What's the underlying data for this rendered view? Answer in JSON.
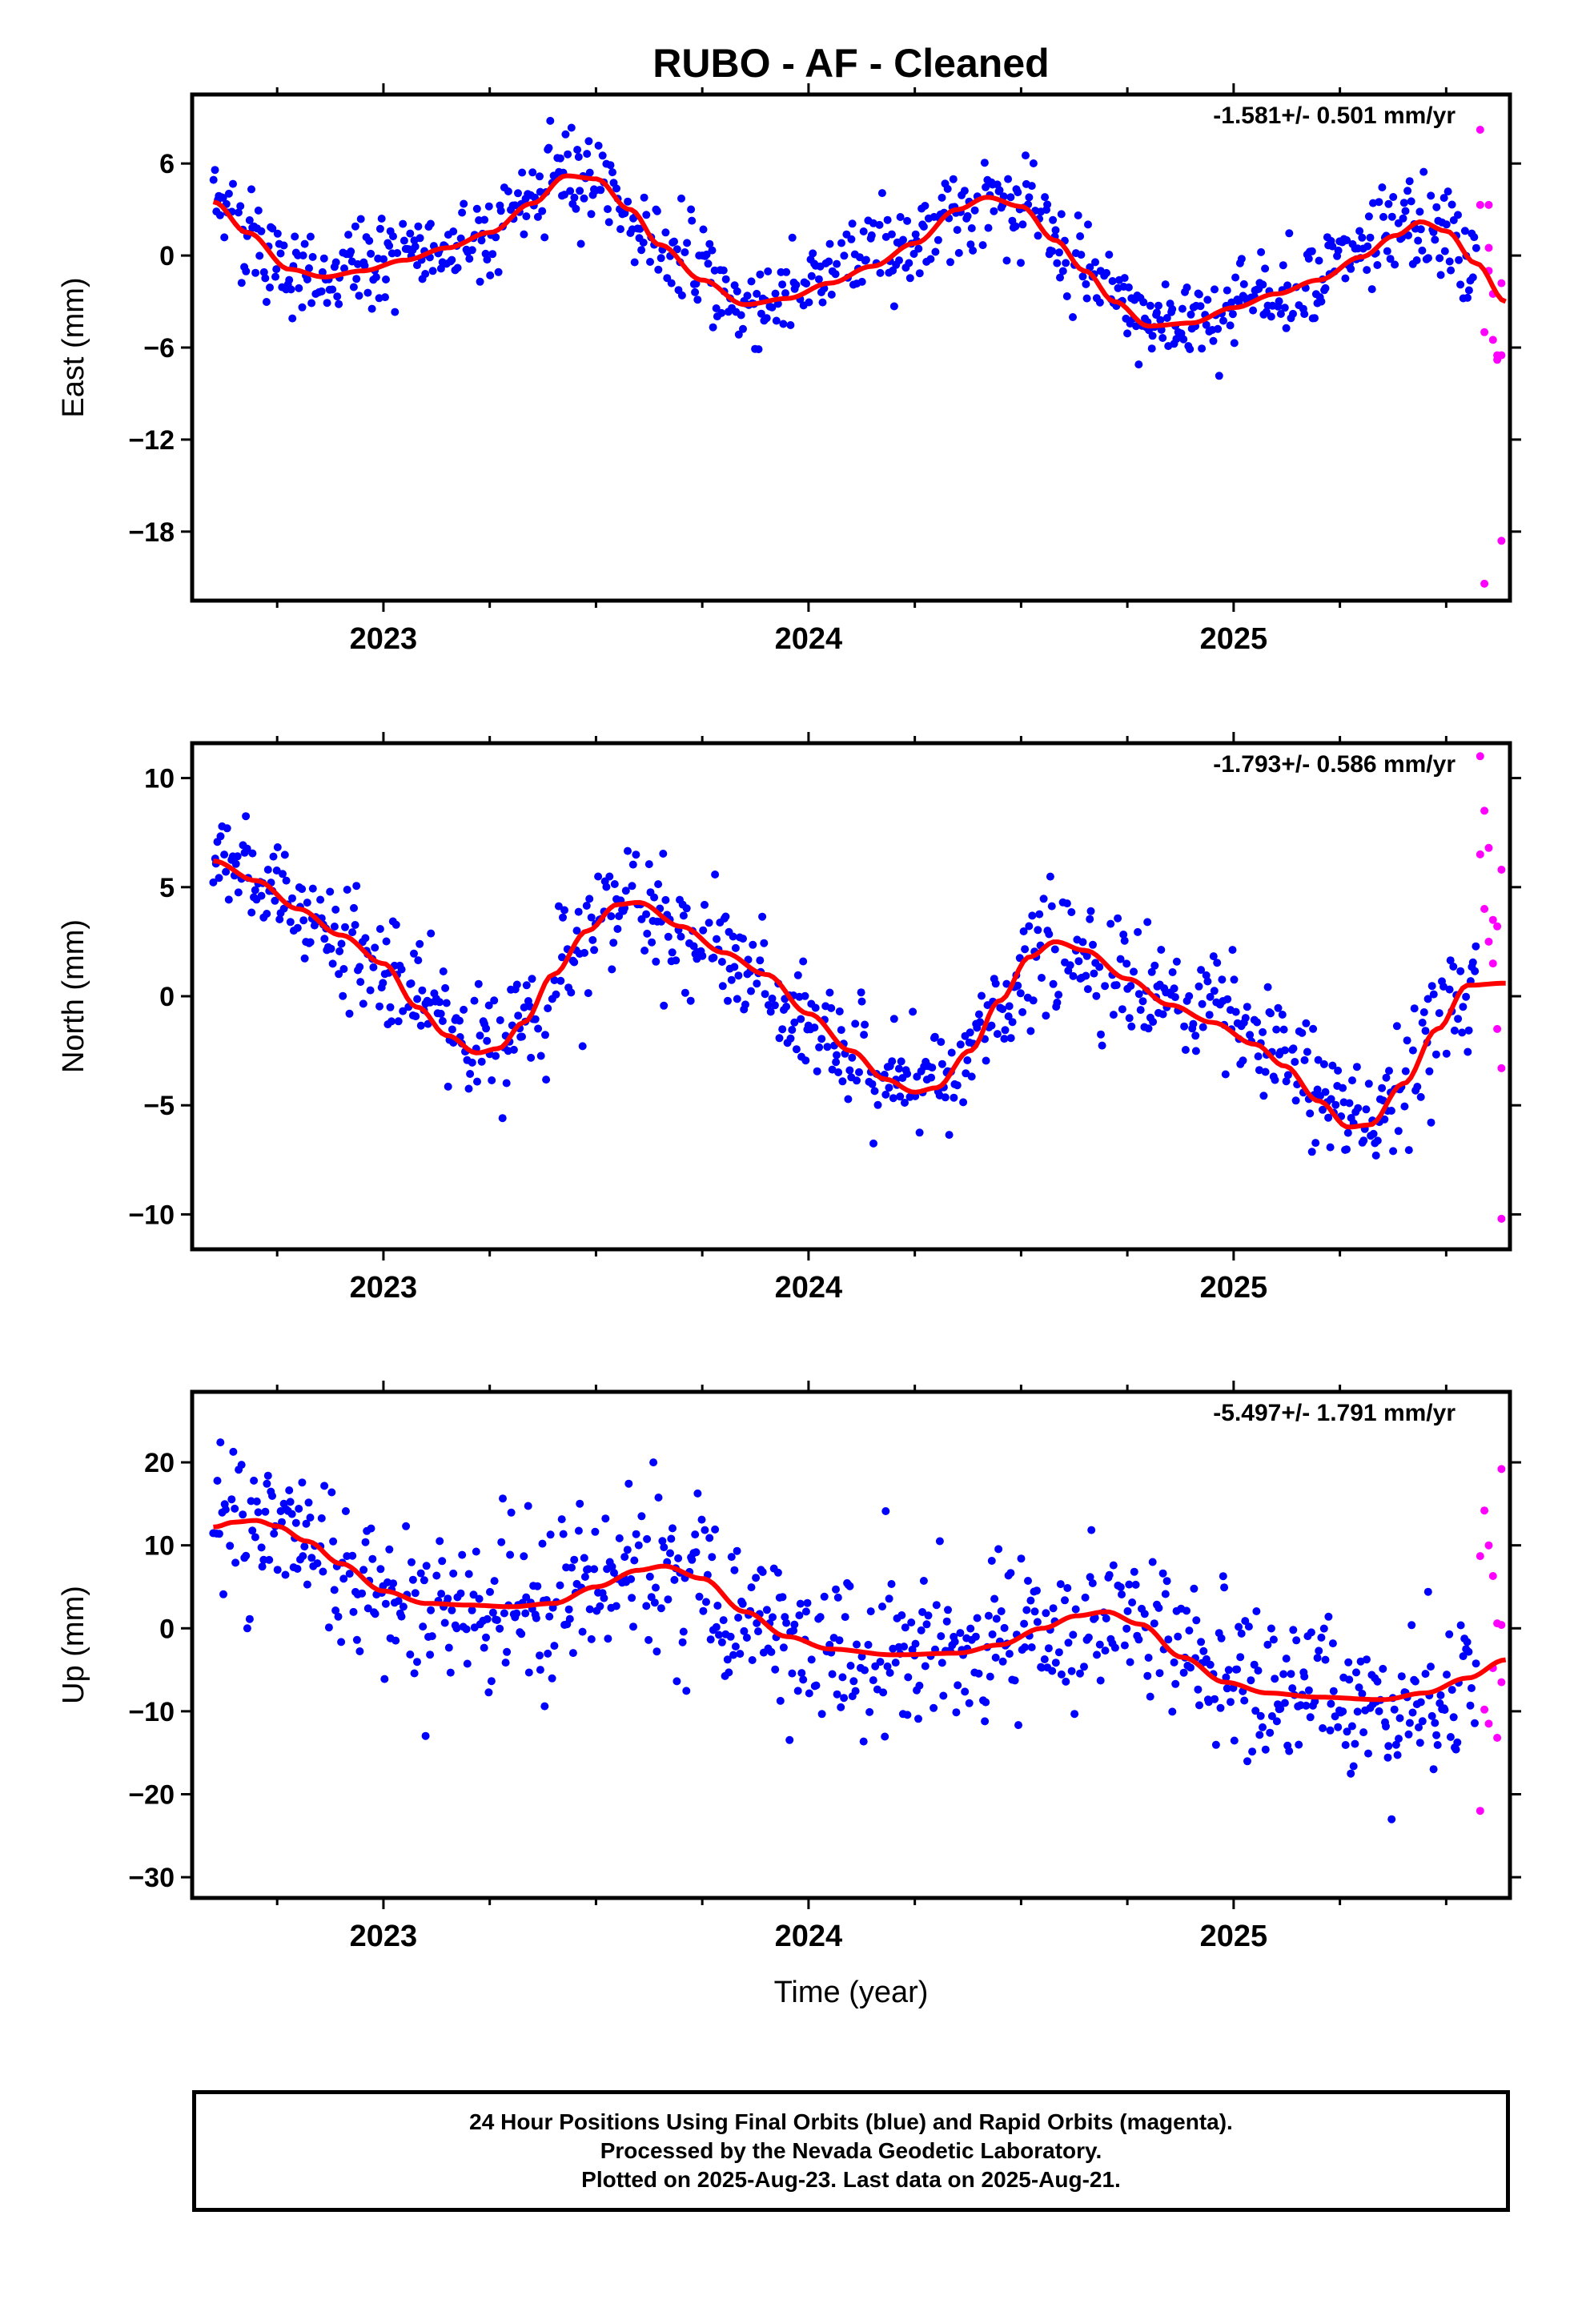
{
  "title": "RUBO  - AF - Cleaned",
  "colors": {
    "final": "#0000ff",
    "rapid": "#ff00ff",
    "fit": "#ff0000",
    "axis": "#000000"
  },
  "chart_data": [
    {
      "type": "scatter",
      "ylabel": "East (mm)",
      "xlabel": "",
      "xlim": [
        2022.55,
        2025.65
      ],
      "ylim": [
        -22.5,
        10.5
      ],
      "yticks": [
        6,
        0,
        -6,
        -12,
        -18
      ],
      "xticks": [
        2023,
        2024,
        2025
      ],
      "rate_label": "-1.581+/- 0.501 mm/yr",
      "grid": false,
      "series": [
        {
          "role": "final",
          "x_range": [
            2022.6,
            2025.57
          ],
          "count": 900,
          "trend_knots": [
            [
              2022.6,
              3.5
            ],
            [
              2022.78,
              -1.0
            ],
            [
              2022.86,
              -1.4
            ],
            [
              2023.05,
              -0.2
            ],
            [
              2023.2,
              1.2
            ],
            [
              2023.35,
              3.8
            ],
            [
              2023.43,
              5.3
            ],
            [
              2023.5,
              4.9
            ],
            [
              2023.65,
              0.8
            ],
            [
              2023.85,
              -3.1
            ],
            [
              2024.0,
              -1.8
            ],
            [
              2024.2,
              0.5
            ],
            [
              2024.35,
              3.0
            ],
            [
              2024.42,
              3.8
            ],
            [
              2024.5,
              3.0
            ],
            [
              2024.65,
              -1.0
            ],
            [
              2024.8,
              -4.6
            ],
            [
              2024.95,
              -3.6
            ],
            [
              2025.1,
              -2.3
            ],
            [
              2025.25,
              -0.6
            ],
            [
              2025.35,
              0.9
            ],
            [
              2025.43,
              2.2
            ],
            [
              2025.5,
              1.6
            ],
            [
              2025.57,
              -0.8
            ]
          ],
          "scatter_sd": 1.5
        },
        {
          "role": "rapid",
          "x": [
            2025.58,
            2025.58,
            2025.59,
            2025.59,
            2025.6,
            2025.6,
            2025.6,
            2025.61,
            2025.61,
            2025.62,
            2025.62,
            2025.63,
            2025.63,
            2025.63
          ],
          "y": [
            8.2,
            3.3,
            -21.4,
            -5.0,
            3.3,
            0.5,
            -1.0,
            -2.5,
            -5.5,
            -6.5,
            -6.8,
            -1.8,
            -6.5,
            -18.6
          ]
        }
      ],
      "fit": {
        "x": [
          2022.6,
          2022.68,
          2022.78,
          2022.86,
          2022.95,
          2023.05,
          2023.15,
          2023.25,
          2023.35,
          2023.43,
          2023.5,
          2023.58,
          2023.65,
          2023.75,
          2023.85,
          2023.95,
          2024.05,
          2024.15,
          2024.25,
          2024.35,
          2024.42,
          2024.5,
          2024.58,
          2024.65,
          2024.72,
          2024.8,
          2024.9,
          2025.0,
          2025.1,
          2025.2,
          2025.3,
          2025.38,
          2025.44,
          2025.5,
          2025.57,
          2025.64
        ],
        "y": [
          3.5,
          1.5,
          -0.9,
          -1.4,
          -1.0,
          -0.3,
          0.5,
          1.5,
          3.4,
          5.2,
          5.0,
          3.0,
          0.7,
          -1.6,
          -3.2,
          -2.8,
          -1.8,
          -0.7,
          0.8,
          3.0,
          3.8,
          3.2,
          1.0,
          -1.0,
          -3.0,
          -4.6,
          -4.4,
          -3.4,
          -2.5,
          -1.6,
          -0.1,
          1.3,
          2.2,
          1.6,
          -0.5,
          -3.0
        ]
      }
    },
    {
      "type": "scatter",
      "ylabel": "North (mm)",
      "xlabel": "",
      "xlim": [
        2022.55,
        2025.65
      ],
      "ylim": [
        -11.6,
        11.6
      ],
      "yticks": [
        10,
        5,
        0,
        -5,
        -10
      ],
      "xticks": [
        2023,
        2024,
        2025
      ],
      "rate_label": "-1.793+/- 0.586 mm/yr",
      "grid": false,
      "series": [
        {
          "role": "final",
          "x_range": [
            2022.6,
            2025.57
          ],
          "count": 900,
          "trend_knots": [
            [
              2022.6,
              6.0
            ],
            [
              2022.85,
              3.5
            ],
            [
              2023.0,
              1.5
            ],
            [
              2023.1,
              -0.5
            ],
            [
              2023.25,
              -2.5
            ],
            [
              2023.35,
              -1.0
            ],
            [
              2023.45,
              2.5
            ],
            [
              2023.58,
              4.5
            ],
            [
              2023.7,
              3.0
            ],
            [
              2023.85,
              1.2
            ],
            [
              2024.0,
              -1.5
            ],
            [
              2024.15,
              -3.5
            ],
            [
              2024.25,
              -4.5
            ],
            [
              2024.35,
              -3.5
            ],
            [
              2024.45,
              -0.5
            ],
            [
              2024.55,
              2.0
            ],
            [
              2024.62,
              2.5
            ],
            [
              2024.75,
              1.0
            ],
            [
              2024.9,
              -0.5
            ],
            [
              2025.05,
              -2.0
            ],
            [
              2025.15,
              -3.5
            ],
            [
              2025.25,
              -5.5
            ],
            [
              2025.3,
              -6.0
            ],
            [
              2025.4,
              -4.0
            ],
            [
              2025.5,
              -0.5
            ],
            [
              2025.57,
              0.8
            ]
          ],
          "scatter_sd": 1.3
        },
        {
          "role": "rapid",
          "x": [
            2025.58,
            2025.58,
            2025.59,
            2025.59,
            2025.6,
            2025.6,
            2025.61,
            2025.61,
            2025.62,
            2025.62,
            2025.63,
            2025.63,
            2025.63
          ],
          "y": [
            11.0,
            6.5,
            8.5,
            4.0,
            2.5,
            6.8,
            3.5,
            1.5,
            -1.5,
            3.2,
            5.8,
            -3.3,
            -10.2
          ]
        }
      ],
      "fit": {
        "x": [
          2022.6,
          2022.7,
          2022.8,
          2022.9,
          2023.0,
          2023.08,
          2023.15,
          2023.22,
          2023.27,
          2023.33,
          2023.4,
          2023.48,
          2023.55,
          2023.6,
          2023.7,
          2023.8,
          2023.9,
          2024.0,
          2024.1,
          2024.18,
          2024.25,
          2024.3,
          2024.38,
          2024.45,
          2024.52,
          2024.58,
          2024.65,
          2024.75,
          2024.85,
          2024.95,
          2025.05,
          2025.12,
          2025.2,
          2025.27,
          2025.32,
          2025.4,
          2025.48,
          2025.55,
          2025.64
        ],
        "y": [
          6.2,
          5.3,
          4.0,
          2.8,
          1.5,
          -0.5,
          -1.8,
          -2.6,
          -2.4,
          -1.2,
          1.0,
          3.0,
          4.2,
          4.3,
          3.2,
          2.0,
          1.0,
          -0.8,
          -2.5,
          -3.8,
          -4.4,
          -4.2,
          -2.5,
          -0.2,
          1.8,
          2.5,
          2.1,
          0.8,
          -0.4,
          -1.2,
          -2.2,
          -3.2,
          -4.8,
          -6.0,
          -5.9,
          -4.0,
          -1.5,
          0.5,
          0.6
        ]
      }
    },
    {
      "type": "scatter",
      "ylabel": "Up (mm)",
      "xlabel": "Time (year)",
      "xlim": [
        2022.55,
        2025.65
      ],
      "ylim": [
        -32.5,
        28.5
      ],
      "yticks": [
        20,
        10,
        0,
        -10,
        -20,
        -30
      ],
      "xticks": [
        2023,
        2024,
        2025
      ],
      "rate_label": "-5.497+/- 1.791 mm/yr",
      "grid": false,
      "series": [
        {
          "role": "final",
          "x_range": [
            2022.6,
            2025.57
          ],
          "count": 900,
          "trend_knots": [
            [
              2022.6,
              13.0
            ],
            [
              2022.7,
              12.5
            ],
            [
              2022.8,
              11.0
            ],
            [
              2022.9,
              8.0
            ],
            [
              2023.0,
              4.0
            ],
            [
              2023.15,
              3.0
            ],
            [
              2023.3,
              2.5
            ],
            [
              2023.45,
              4.5
            ],
            [
              2023.6,
              7.5
            ],
            [
              2023.7,
              7.0
            ],
            [
              2023.85,
              1.5
            ],
            [
              2024.0,
              -2.5
            ],
            [
              2024.2,
              -3.0
            ],
            [
              2024.4,
              -3.0
            ],
            [
              2024.55,
              -0.5
            ],
            [
              2024.7,
              2.0
            ],
            [
              2024.8,
              0.5
            ],
            [
              2024.95,
              -5.0
            ],
            [
              2025.1,
              -7.5
            ],
            [
              2025.3,
              -8.5
            ],
            [
              2025.45,
              -8.0
            ],
            [
              2025.57,
              -5.0
            ]
          ],
          "scatter_sd": 4.8
        },
        {
          "role": "rapid",
          "x": [
            2025.58,
            2025.58,
            2025.59,
            2025.59,
            2025.6,
            2025.6,
            2025.61,
            2025.61,
            2025.62,
            2025.62,
            2025.63,
            2025.63,
            2025.63
          ],
          "y": [
            8.7,
            -22.0,
            14.2,
            -9.8,
            10.0,
            -11.5,
            6.3,
            -4.8,
            -13.2,
            0.6,
            19.2,
            -6.5,
            0.4
          ]
        }
      ],
      "fit": {
        "x": [
          2022.6,
          2022.65,
          2022.7,
          2022.75,
          2022.82,
          2022.9,
          2023.0,
          2023.1,
          2023.2,
          2023.3,
          2023.4,
          2023.5,
          2023.6,
          2023.66,
          2023.75,
          2023.85,
          2023.95,
          2024.05,
          2024.2,
          2024.35,
          2024.45,
          2024.55,
          2024.63,
          2024.7,
          2024.78,
          2024.88,
          2024.98,
          2025.08,
          2025.2,
          2025.35,
          2025.45,
          2025.55,
          2025.64
        ],
        "y": [
          12.2,
          12.8,
          13.0,
          12.3,
          10.5,
          7.8,
          4.5,
          3.0,
          2.8,
          2.6,
          3.0,
          5.0,
          7.0,
          7.5,
          6.0,
          2.0,
          -1.0,
          -2.5,
          -3.2,
          -3.0,
          -2.0,
          0.0,
          1.5,
          2.0,
          0.5,
          -3.5,
          -6.5,
          -7.8,
          -8.3,
          -8.6,
          -7.8,
          -6.0,
          -3.8
        ]
      }
    }
  ],
  "x_tick_labels": [
    "2023",
    "2024",
    "2025"
  ],
  "footer": {
    "line1": "24 Hour Positions Using Final Orbits (blue) and Rapid Orbits (magenta).",
    "line2": "Processed by the Nevada Geodetic Laboratory.",
    "line3": "Plotted on 2025-Aug-23. Last data on 2025-Aug-21."
  }
}
